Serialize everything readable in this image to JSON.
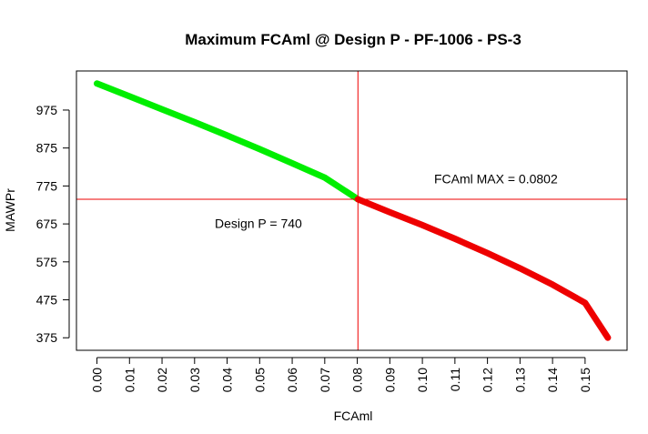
{
  "chart_data": {
    "type": "line",
    "title": "Maximum FCAml @ Design P - PF-1006 - PS-3",
    "xlabel": "FCAml",
    "ylabel": "MAWPr",
    "x_ticks": [
      "0.00",
      "0.01",
      "0.02",
      "0.03",
      "0.04",
      "0.05",
      "0.06",
      "0.07",
      "0.08",
      "0.09",
      "0.10",
      "0.11",
      "0.12",
      "0.13",
      "0.14",
      "0.15"
    ],
    "y_ticks": [
      "375",
      "475",
      "575",
      "675",
      "775",
      "875",
      "975"
    ],
    "xlim": [
      -0.0063,
      0.1629
    ],
    "ylim": [
      342,
      1078
    ],
    "grid": false,
    "series": [
      {
        "color": "#00ee00",
        "x": [
          0.0,
          0.01,
          0.02,
          0.03,
          0.04,
          0.05,
          0.06,
          0.07,
          0.0802
        ],
        "y": [
          1045,
          1011,
          977,
          943,
          908,
          872,
          835,
          797,
          740
        ]
      },
      {
        "color": "#ee0000",
        "x": [
          0.0802,
          0.09,
          0.1,
          0.11,
          0.12,
          0.13,
          0.14,
          0.15,
          0.157
        ],
        "y": [
          740,
          706,
          672,
          636,
          598,
          558,
          515,
          467,
          375
        ]
      }
    ],
    "reference_lines": {
      "color": "#ee0000",
      "vertical_x": 0.0802,
      "horizontal_y": 740
    },
    "annotations": [
      {
        "text": "FCAml MAX = 0.0802",
        "x": 0.1036,
        "y": 782
      },
      {
        "text": "Design P = 740",
        "x": 0.0362,
        "y": 664
      }
    ]
  }
}
